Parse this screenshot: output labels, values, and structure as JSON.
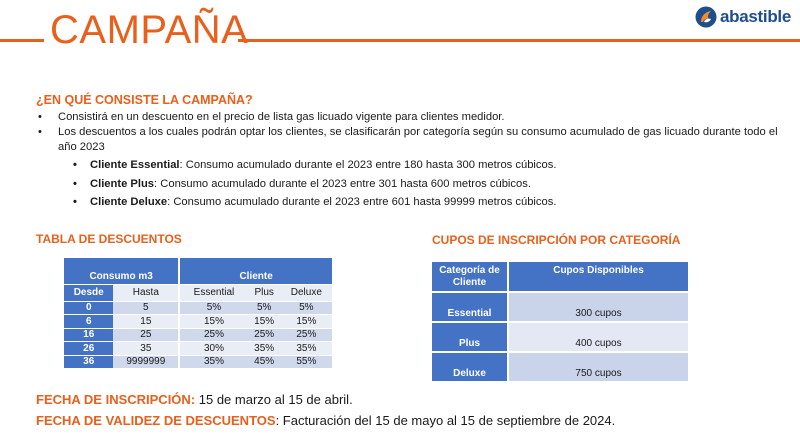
{
  "header": {
    "title": "CAMPAÑA",
    "logo_text": "abastible",
    "logo_icon": "abastible-flame-logo",
    "accent_color": "#e8601c",
    "brand_color": "#1f4e8c"
  },
  "campaign": {
    "question": "¿EN QUÉ CONSISTE LA CAMPAÑA?",
    "bullets": [
      "Consistirá en un descuento en el precio de lista gas licuado vigente para clientes medidor.",
      "Los descuentos a los cuales podrán optar los clientes, se clasificarán por categoría según su consumo acumulado de gas licuado durante todo el año 2023"
    ],
    "categories": [
      {
        "name": "Cliente Essential",
        "text": ":  Consumo acumulado durante el 2023 entre 180 hasta 300 metros cúbicos."
      },
      {
        "name": "Cliente Plus",
        "text": ": Consumo acumulado durante el 2023 entre 301 hasta 600 metros cúbicos."
      },
      {
        "name": "Cliente Deluxe",
        "text": ": Consumo acumulado durante el 2023 entre 601 hasta 99999 metros cúbicos."
      }
    ]
  },
  "discounts": {
    "heading": "TABLA DE DESCUENTOS",
    "group_consumo": "Consumo m3",
    "group_cliente": "Cliente",
    "columns": [
      "Desde",
      "Hasta",
      "Essential",
      "Plus",
      "Deluxe"
    ],
    "rows": [
      [
        "0",
        "5",
        "5%",
        "5%",
        "5%"
      ],
      [
        "6",
        "15",
        "15%",
        "15%",
        "15%"
      ],
      [
        "16",
        "25",
        "25%",
        "25%",
        "25%"
      ],
      [
        "26",
        "35",
        "30%",
        "35%",
        "35%"
      ],
      [
        "36",
        "9999999",
        "35%",
        "45%",
        "55%"
      ]
    ]
  },
  "cupos": {
    "heading": "CUPOS DE INSCRIPCIÓN POR CATEGORÍA",
    "col_categoria": "Categoría de Cliente",
    "col_cupos": "Cupos Disponibles",
    "rows": [
      {
        "categoria": "Essential",
        "cupos": "300 cupos"
      },
      {
        "categoria": "Plus",
        "cupos": "400 cupos"
      },
      {
        "categoria": "Deluxe",
        "cupos": "750 cupos"
      }
    ]
  },
  "dates": {
    "inscripcion_label": "FECHA DE INSCRIPCIÓN:",
    "inscripcion_value": " 15 de marzo al 15 de abril.",
    "validez_label": "FECHA DE VALIDEZ DE DESCUENTOS",
    "validez_value": ": Facturación del 15 de mayo al 15 de septiembre de 2024."
  }
}
